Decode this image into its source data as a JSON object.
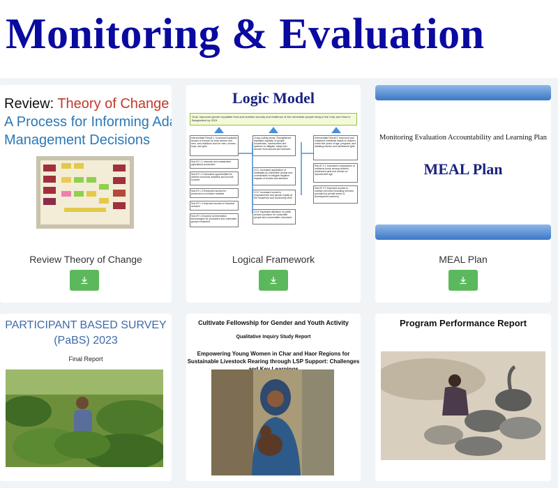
{
  "page": {
    "title": "Monitoring & Evaluation"
  },
  "cards": [
    {
      "label": "Review Theory of Change",
      "cover": {
        "line1_prefix": "Review: ",
        "line1_highlight": "Theory of Change",
        "line2": "A Process for Informing Adaptive",
        "line3": "Management Decisions"
      },
      "download_icon": "download-icon"
    },
    {
      "label": "Logical Framework",
      "cover": {
        "title": "Logic Model",
        "goal": "Goal: Improved gender equitable food and nutrition security and resilience of the vulnerable people living in the Char and Haor in Bangladesh by 2024",
        "left_head": "Intermediate Result 1: Increased equitable access to income for both women and men, and nutritious food for men, women, boys, and girls",
        "left_items": [
          "Sub-IR 1.1 Inclusive and sustainable agricultural production",
          "Sub-IR 1.2 Increased opportunities for diverse economic activities and income sources",
          "Sub-IR 1.3 Enhanced access for producers to inclusive markets",
          "Sub-IR 1.4 Improved access to financial services",
          "Sub-IR 1.5 Access to information technologies for producers and vulnerable groups enhanced"
        ],
        "center_head": "Cross-cutting areas: Strengthened equitable capacity of people, households, communities and systems to mitigate, adapt and recover from shocks and stresses",
        "center_items": [
          "CC1: Increased application of strategies by vulnerable people and communities to mitigate negative impacts of shocks and stresses",
          "CC2: Increased women's empowerment and gender equity at the household and community level",
          "CC3: Equitable utilization of public service provision for vulnerable people and communities increased"
        ],
        "right_head": "Intermediate Result 2: Improved and sustained nutritional status of children under five years of age, pregnant, and lactating women and adolescent girls",
        "right_items": [
          "Sub-IR 2.1 Increased consumption of nutritious foods among children, adolescent girls and women of reproductive age",
          "Sub-IR 2.2 Improved access to nutrition services (including services provided by private sector & development partners)"
        ]
      },
      "download_icon": "download-icon"
    },
    {
      "label": "MEAL Plan",
      "cover": {
        "subtitle": "Monitoring Evaluation Accountability  and Learning  Plan",
        "title": "MEAL Plan"
      },
      "download_icon": "download-icon"
    },
    {
      "cover": {
        "line1": "PARTICIPANT BASED SURVEY",
        "line2": "(PaBS) 2023",
        "line3": "Final Report"
      }
    },
    {
      "cover": {
        "line1": "Cultivate Fellowship for Gender and Youth Activity",
        "line2": "Qualitative Inquiry Study Report",
        "line3": "Empowering Young Women in Char and Haor Regions for Sustainable Livestock Rearing through LSP Support: Challenges and Key Learnings"
      }
    },
    {
      "cover": {
        "title": "Program Performance Report"
      }
    }
  ],
  "colors": {
    "title": "#0a0aa0",
    "download_button": "#5cb85c",
    "band": "#f1f4f7"
  }
}
